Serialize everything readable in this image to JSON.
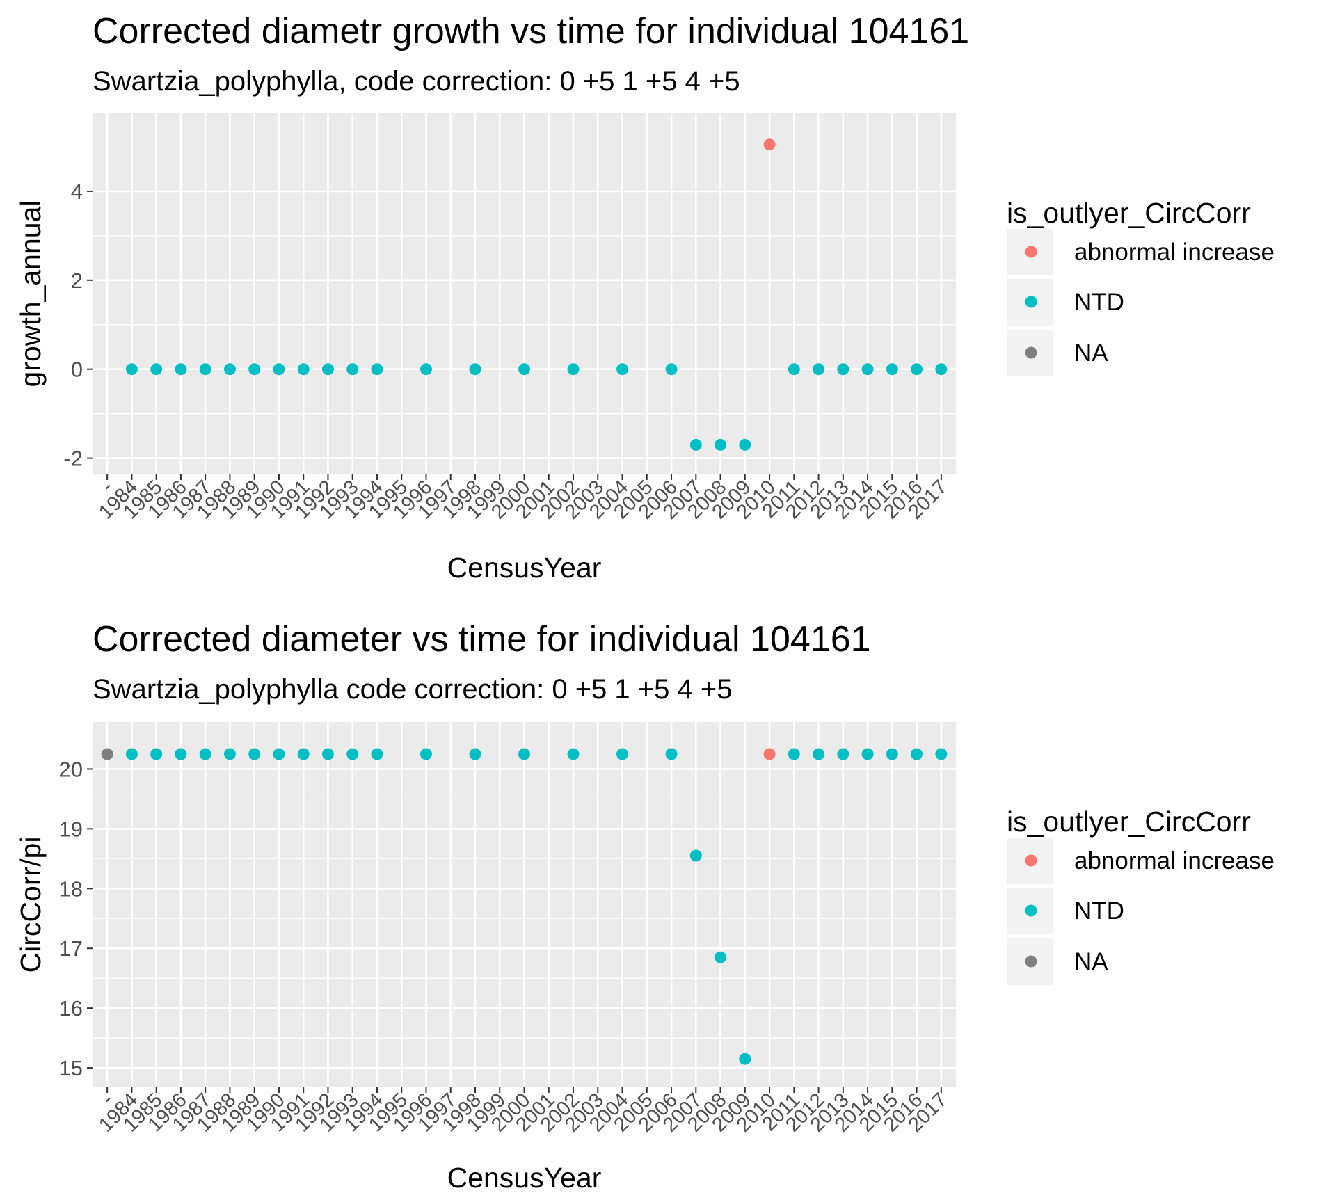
{
  "chart_data": [
    {
      "type": "scatter",
      "title": "Corrected diametr growth vs time for individual 104161",
      "subtitle": "Swartzia_polyphylla, code correction: 0 +5 1 +5 4 +5",
      "xlabel": "CensusYear",
      "ylabel": "growth_annual",
      "ylim": [
        -2,
        5.4
      ],
      "yticks": [
        -2,
        0,
        2,
        4
      ],
      "ytick_labels": [
        "-2",
        "0",
        "2",
        "4"
      ],
      "xtick_labels": [
        "-",
        "1984",
        "1985",
        "1986",
        "1987",
        "1988",
        "1989",
        "1990",
        "1991",
        "1992",
        "1993",
        "1994",
        "1995",
        "1996",
        "1997",
        "1998",
        "1999",
        "2000",
        "2001",
        "2002",
        "2003",
        "2004",
        "2005",
        "2006",
        "2007",
        "2008",
        "2009",
        "2010",
        "2011",
        "2012",
        "2013",
        "2014",
        "2015",
        "2016",
        "2017"
      ],
      "grid": true,
      "legend_position": "right",
      "legend_title": "is_outlyer_CircCorr",
      "legend": [
        {
          "label": "abnormal increase",
          "color": "#F8766D"
        },
        {
          "label": "NTD",
          "color": "#00BFC4"
        },
        {
          "label": "NA",
          "color": "#7F7F7F"
        }
      ],
      "points": [
        {
          "x": "1984",
          "y": 0,
          "group": "NTD"
        },
        {
          "x": "1985",
          "y": 0,
          "group": "NTD"
        },
        {
          "x": "1986",
          "y": 0,
          "group": "NTD"
        },
        {
          "x": "1987",
          "y": 0,
          "group": "NTD"
        },
        {
          "x": "1988",
          "y": 0,
          "group": "NTD"
        },
        {
          "x": "1989",
          "y": 0,
          "group": "NTD"
        },
        {
          "x": "1990",
          "y": 0,
          "group": "NTD"
        },
        {
          "x": "1991",
          "y": 0,
          "group": "NTD"
        },
        {
          "x": "1992",
          "y": 0,
          "group": "NTD"
        },
        {
          "x": "1993",
          "y": 0,
          "group": "NTD"
        },
        {
          "x": "1994",
          "y": 0,
          "group": "NTD"
        },
        {
          "x": "1996",
          "y": 0,
          "group": "NTD"
        },
        {
          "x": "1998",
          "y": 0,
          "group": "NTD"
        },
        {
          "x": "2000",
          "y": 0,
          "group": "NTD"
        },
        {
          "x": "2002",
          "y": 0,
          "group": "NTD"
        },
        {
          "x": "2004",
          "y": 0,
          "group": "NTD"
        },
        {
          "x": "2006",
          "y": 0,
          "group": "NTD"
        },
        {
          "x": "2007",
          "y": -1.7,
          "group": "NTD"
        },
        {
          "x": "2008",
          "y": -1.7,
          "group": "NTD"
        },
        {
          "x": "2009",
          "y": -1.7,
          "group": "NTD"
        },
        {
          "x": "2010",
          "y": 5.05,
          "group": "abnormal increase"
        },
        {
          "x": "2011",
          "y": 0,
          "group": "NTD"
        },
        {
          "x": "2012",
          "y": 0,
          "group": "NTD"
        },
        {
          "x": "2013",
          "y": 0,
          "group": "NTD"
        },
        {
          "x": "2014",
          "y": 0,
          "group": "NTD"
        },
        {
          "x": "2015",
          "y": 0,
          "group": "NTD"
        },
        {
          "x": "2016",
          "y": 0,
          "group": "NTD"
        },
        {
          "x": "2017",
          "y": 0,
          "group": "NTD"
        }
      ]
    },
    {
      "type": "scatter",
      "title": "Corrected diameter vs time for individual 104161",
      "subtitle": "Swartzia_polyphylla code correction: 0 +5 1 +5 4 +5",
      "xlabel": "CensusYear",
      "ylabel": "CircCorr/pi",
      "ylim": [
        14.95,
        20.51
      ],
      "yticks": [
        15,
        16,
        17,
        18,
        19,
        20
      ],
      "ytick_labels": [
        "15",
        "16",
        "17",
        "18",
        "19",
        "20"
      ],
      "xtick_labels": [
        "-",
        "1984",
        "1985",
        "1986",
        "1987",
        "1988",
        "1989",
        "1990",
        "1991",
        "1992",
        "1993",
        "1994",
        "1995",
        "1996",
        "1997",
        "1998",
        "1999",
        "2000",
        "2001",
        "2002",
        "2003",
        "2004",
        "2005",
        "2006",
        "2007",
        "2008",
        "2009",
        "2010",
        "2011",
        "2012",
        "2013",
        "2014",
        "2015",
        "2016",
        "2017"
      ],
      "grid": true,
      "legend_position": "right",
      "legend_title": "is_outlyer_CircCorr",
      "legend": [
        {
          "label": "abnormal increase",
          "color": "#F8766D"
        },
        {
          "label": "NTD",
          "color": "#00BFC4"
        },
        {
          "label": "NA",
          "color": "#7F7F7F"
        }
      ],
      "points": [
        {
          "x": "-",
          "y": 20.25,
          "group": "NA"
        },
        {
          "x": "1984",
          "y": 20.25,
          "group": "NTD"
        },
        {
          "x": "1985",
          "y": 20.25,
          "group": "NTD"
        },
        {
          "x": "1986",
          "y": 20.25,
          "group": "NTD"
        },
        {
          "x": "1987",
          "y": 20.25,
          "group": "NTD"
        },
        {
          "x": "1988",
          "y": 20.25,
          "group": "NTD"
        },
        {
          "x": "1989",
          "y": 20.25,
          "group": "NTD"
        },
        {
          "x": "1990",
          "y": 20.25,
          "group": "NTD"
        },
        {
          "x": "1991",
          "y": 20.25,
          "group": "NTD"
        },
        {
          "x": "1992",
          "y": 20.25,
          "group": "NTD"
        },
        {
          "x": "1993",
          "y": 20.25,
          "group": "NTD"
        },
        {
          "x": "1994",
          "y": 20.25,
          "group": "NTD"
        },
        {
          "x": "1996",
          "y": 20.25,
          "group": "NTD"
        },
        {
          "x": "1998",
          "y": 20.25,
          "group": "NTD"
        },
        {
          "x": "2000",
          "y": 20.25,
          "group": "NTD"
        },
        {
          "x": "2002",
          "y": 20.25,
          "group": "NTD"
        },
        {
          "x": "2004",
          "y": 20.25,
          "group": "NTD"
        },
        {
          "x": "2006",
          "y": 20.25,
          "group": "NTD"
        },
        {
          "x": "2007",
          "y": 18.55,
          "group": "NTD"
        },
        {
          "x": "2008",
          "y": 16.85,
          "group": "NTD"
        },
        {
          "x": "2009",
          "y": 15.15,
          "group": "NTD"
        },
        {
          "x": "2010",
          "y": 20.25,
          "group": "abnormal increase"
        },
        {
          "x": "2011",
          "y": 20.25,
          "group": "NTD"
        },
        {
          "x": "2012",
          "y": 20.25,
          "group": "NTD"
        },
        {
          "x": "2013",
          "y": 20.25,
          "group": "NTD"
        },
        {
          "x": "2014",
          "y": 20.25,
          "group": "NTD"
        },
        {
          "x": "2015",
          "y": 20.25,
          "group": "NTD"
        },
        {
          "x": "2016",
          "y": 20.25,
          "group": "NTD"
        },
        {
          "x": "2017",
          "y": 20.25,
          "group": "NTD"
        }
      ]
    }
  ]
}
